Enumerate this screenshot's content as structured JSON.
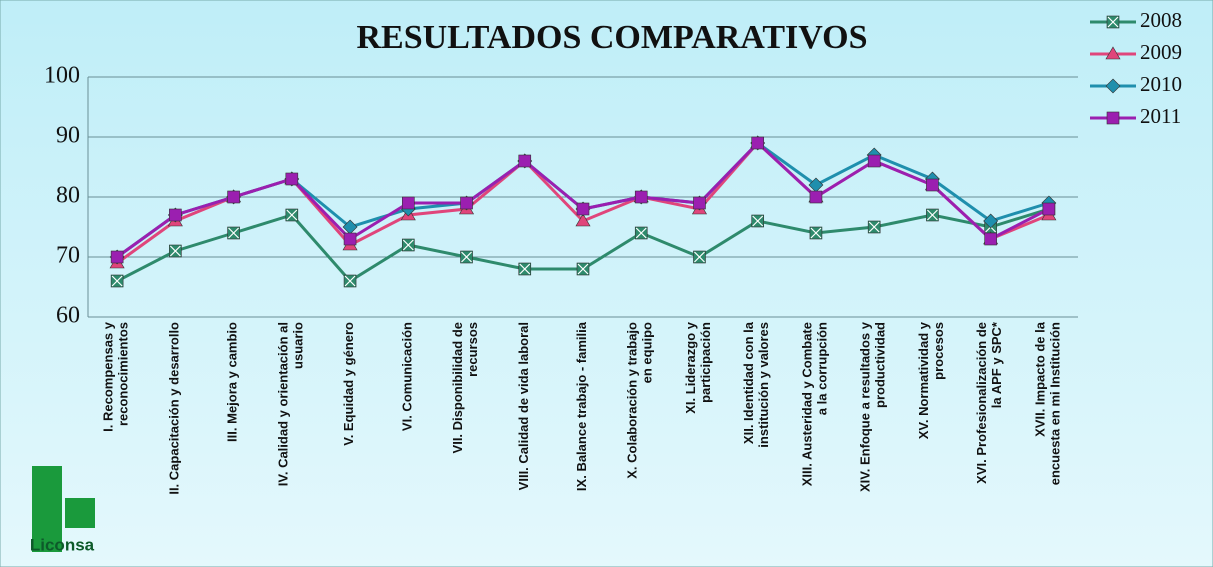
{
  "chart_data": {
    "type": "line",
    "title": "RESULTADOS COMPARATIVOS",
    "logo": "Liconsa",
    "categories": [
      "I. Recompensas y\nreconocimientos",
      "II. Capacitación y desarrollo",
      "III. Mejora y cambio",
      "IV. Calidad y orientación al\nusuario",
      "V. Equidad y género",
      "VI. Comunicación",
      "VII. Disponibilidad de\nrecursos",
      "VIII. Calidad de vida laboral",
      "IX. Balance trabajo - familia",
      "X. Colaboración y trabajo\nen equipo",
      "XI. Liderazgo y\nparticipación",
      "XII. Identidad con la\ninstitución y valores",
      "XIII. Austeridad y Combate\na la corrupción",
      "XIV. Enfoque a resultados y\nproductividad",
      "XV. Normatividad y\nprocesos",
      "XVI. Profesionalización de\nla APF y SPC*",
      "XVII. Impacto de la\nencuesta en mi Institución"
    ],
    "series": [
      {
        "name": "2008",
        "color": "#2e8a6c",
        "marker": "square-x",
        "values": [
          66,
          71,
          74,
          77,
          66,
          72,
          70,
          68,
          68,
          74,
          70,
          76,
          74,
          75,
          77,
          75,
          78
        ]
      },
      {
        "name": "2009",
        "color": "#e0457b",
        "marker": "triangle",
        "values": [
          69,
          76,
          80,
          83,
          72,
          77,
          78,
          86,
          76,
          80,
          78,
          89,
          80,
          86,
          82,
          73,
          77
        ]
      },
      {
        "name": "2010",
        "color": "#1f8fad",
        "marker": "diamond",
        "values": [
          70,
          77,
          80,
          83,
          75,
          78,
          79,
          86,
          78,
          80,
          79,
          89,
          82,
          87,
          83,
          76,
          79
        ]
      },
      {
        "name": "2011",
        "color": "#9b1fb0",
        "marker": "square",
        "values": [
          70,
          77,
          80,
          83,
          73,
          79,
          79,
          86,
          78,
          80,
          79,
          89,
          80,
          86,
          82,
          73,
          78
        ]
      }
    ],
    "ylim": [
      60,
      100
    ],
    "yticks": [
      60,
      70,
      80,
      90,
      100
    ],
    "grid": true,
    "legend": "top-right"
  }
}
